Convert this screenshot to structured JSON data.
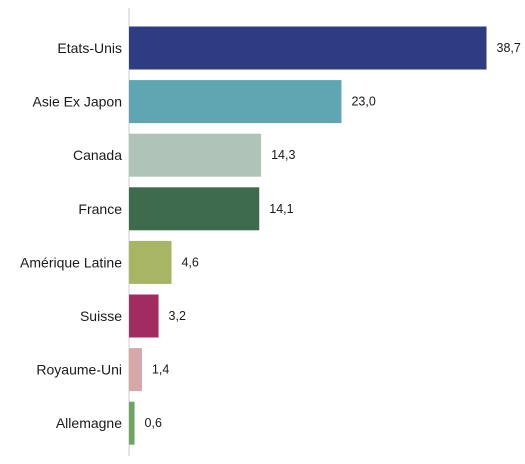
{
  "chart_data": {
    "type": "bar",
    "orientation": "horizontal",
    "categories": [
      "Etats-Unis",
      "Asie Ex Japon",
      "Canada",
      "France",
      "Amérique Latine",
      "Suisse",
      "Royaume-Uni",
      "Allemagne"
    ],
    "values": [
      38.7,
      23.0,
      14.3,
      14.1,
      4.6,
      3.2,
      1.4,
      0.6
    ],
    "value_labels": [
      "38,7",
      "23,0",
      "14,3",
      "14,1",
      "4,6",
      "3,2",
      "1,4",
      "0,6"
    ],
    "colors": [
      "#2E3C82",
      "#5FA6B2",
      "#AFC3B8",
      "#3D6B4C",
      "#A7B565",
      "#A22B62",
      "#D7A8AA",
      "#6EA562"
    ],
    "xlim": [
      0,
      40
    ],
    "grid": false,
    "legend": false
  }
}
